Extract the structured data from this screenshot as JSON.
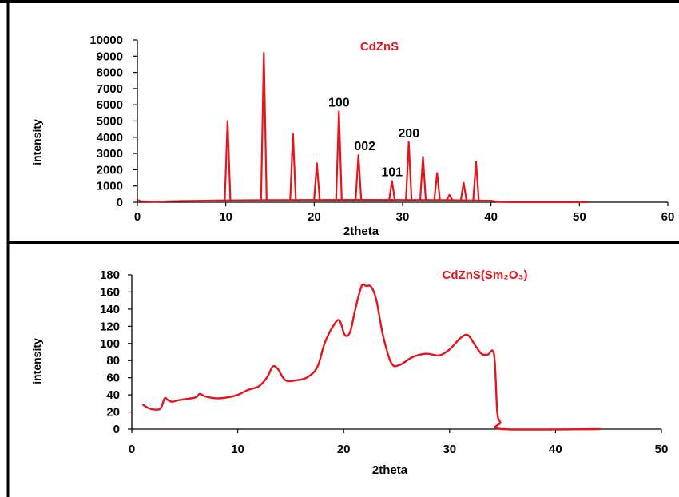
{
  "chart_data": [
    {
      "type": "line",
      "title": "CdZnS",
      "xlabel": "2theta",
      "ylabel": "intensity",
      "xlim": [
        0,
        60
      ],
      "ylim": [
        0,
        10000
      ],
      "xticks": [
        "0",
        "10",
        "20",
        "30",
        "40",
        "50",
        "60"
      ],
      "yticks": [
        "0",
        "1000",
        "2000",
        "3000",
        "4000",
        "5000",
        "6000",
        "7000",
        "8000",
        "9000",
        "10000"
      ],
      "color": "#e8141c",
      "baseline": [
        [
          0,
          150
        ],
        [
          0.4,
          60
        ],
        [
          2,
          40
        ],
        [
          5,
          80
        ],
        [
          9.5,
          120
        ],
        [
          15,
          140
        ],
        [
          25,
          150
        ],
        [
          35,
          140
        ],
        [
          40,
          100
        ],
        [
          41,
          10
        ],
        [
          43,
          0
        ],
        [
          51,
          0
        ]
      ],
      "peaks": [
        {
          "x": 10.2,
          "y": 5000
        },
        {
          "x": 14.3,
          "y": 9200
        },
        {
          "x": 17.6,
          "y": 4200
        },
        {
          "x": 20.3,
          "y": 2400
        },
        {
          "x": 22.8,
          "y": 5600
        },
        {
          "x": 25.0,
          "y": 2900
        },
        {
          "x": 28.8,
          "y": 1300
        },
        {
          "x": 30.7,
          "y": 3700
        },
        {
          "x": 32.3,
          "y": 2800
        },
        {
          "x": 33.9,
          "y": 1800
        },
        {
          "x": 35.3,
          "y": 450
        },
        {
          "x": 36.9,
          "y": 1200
        },
        {
          "x": 38.3,
          "y": 2500
        }
      ],
      "annotations": [
        {
          "text": "100",
          "x": 22.8
        },
        {
          "text": "002",
          "x": 25.0
        },
        {
          "text": "101",
          "x": 28.8
        },
        {
          "text": "200",
          "x": 30.7
        }
      ]
    },
    {
      "type": "line",
      "title": "CdZnS(Sm₂O₃)",
      "xlabel": "2theta",
      "ylabel": "intensity",
      "xlim": [
        0,
        50
      ],
      "ylim": [
        0,
        180
      ],
      "xticks": [
        "0",
        "10",
        "20",
        "30",
        "40",
        "50"
      ],
      "yticks": [
        "0",
        "20",
        "40",
        "60",
        "80",
        "100",
        "120",
        "140",
        "160",
        "180"
      ],
      "color": "#e8141c",
      "series": [
        {
          "x": [
            1,
            1.5,
            2,
            2.7,
            3.1,
            3.4,
            3.8,
            4.5,
            6,
            6.4,
            7,
            8,
            9,
            10,
            11,
            12,
            12.8,
            13.3,
            13.8,
            14.5,
            15.5,
            16.5,
            17.5,
            18.2,
            19,
            19.6,
            20.1,
            20.6,
            21.1,
            21.7,
            22.1,
            22.6,
            23.1,
            23.7,
            24.5,
            25.3,
            26.5,
            27.8,
            29,
            30,
            31,
            31.7,
            32.3,
            33,
            33.6,
            34.2,
            34.5,
            34.8,
            35,
            44.2
          ],
          "values": [
            29,
            25,
            23,
            24,
            36,
            34,
            32,
            34,
            37,
            41,
            38,
            36,
            37,
            40,
            46,
            50,
            61,
            73,
            70,
            57,
            57,
            60,
            72,
            100,
            120,
            127,
            110,
            113,
            140,
            167,
            167,
            166,
            150,
            110,
            77,
            75,
            84,
            88,
            86,
            93,
            106,
            110,
            100,
            88,
            87,
            87,
            20,
            8,
            0,
            0
          ]
        }
      ]
    }
  ]
}
